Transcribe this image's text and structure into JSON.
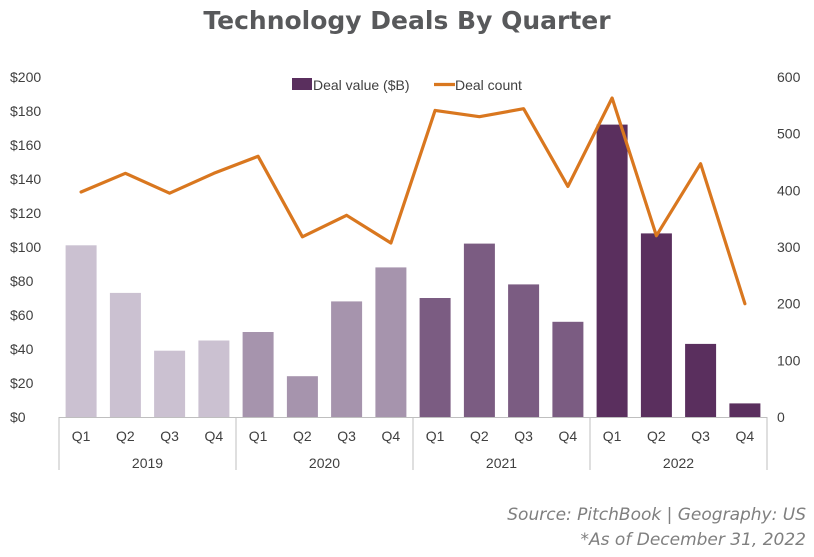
{
  "title": "Technology Deals By Quarter",
  "colors": {
    "y2019": "#cbc1d1",
    "y2020": "#a694ad",
    "y2021": "#7b5c82",
    "y2022": "#5a2f5e",
    "line": "#d9771f",
    "axis": "#bfbfbf",
    "text": "#404040"
  },
  "chart_data": {
    "type": "bar",
    "categories": [
      "Q1",
      "Q2",
      "Q3",
      "Q4",
      "Q1",
      "Q2",
      "Q3",
      "Q4",
      "Q1",
      "Q2",
      "Q3",
      "Q4",
      "Q1",
      "Q2",
      "Q3",
      "Q4"
    ],
    "years": [
      "2019",
      "2020",
      "2021",
      "2022"
    ],
    "series": [
      {
        "name": "Deal value ($B)",
        "kind": "bar",
        "axis": "left",
        "values": [
          101,
          73,
          39,
          45,
          50,
          24,
          68,
          88,
          70,
          102,
          78,
          56,
          172,
          108,
          43,
          8
        ]
      },
      {
        "name": "Deal count",
        "kind": "line",
        "axis": "right",
        "values": [
          397,
          430,
          395,
          430,
          460,
          318,
          356,
          307,
          541,
          530,
          544,
          407,
          563,
          320,
          447,
          200
        ]
      }
    ],
    "ylim_left": [
      0,
      200
    ],
    "ylim_right": [
      0,
      600
    ],
    "yticks_left": [
      "$0",
      "$20",
      "$40",
      "$60",
      "$80",
      "$100",
      "$120",
      "$140",
      "$160",
      "$180",
      "$200"
    ],
    "yticks_right": [
      "0",
      "100",
      "200",
      "300",
      "400",
      "500",
      "600"
    ],
    "legend_position": "top-center",
    "grid": false
  },
  "source_line": "Source: PitchBook | Geography: US",
  "asof_line": "*As of December 31, 2022"
}
